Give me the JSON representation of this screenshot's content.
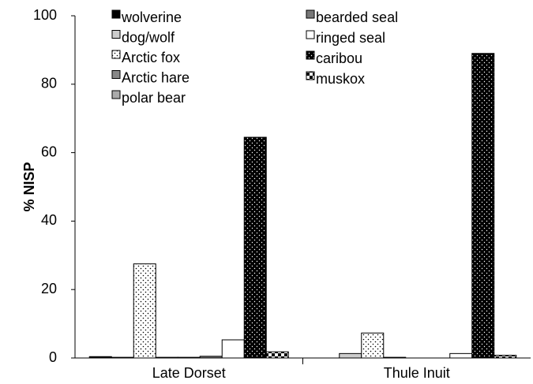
{
  "chart_data": {
    "type": "bar",
    "y_label": "% NISP",
    "categories": [
      "Late Dorset",
      "Thule Inuit"
    ],
    "series": [
      {
        "name": "wolverine",
        "color": "#000000",
        "values": [
          0.4,
          0
        ]
      },
      {
        "name": "dog/wolf",
        "color": "#cccccc",
        "values": [
          0.2,
          1.3
        ]
      },
      {
        "name": "Arctic fox",
        "color": "#ffffff",
        "pattern": "dots",
        "values": [
          27.5,
          7.3
        ]
      },
      {
        "name": "Arctic hare",
        "color": "#888888",
        "values": [
          0.2,
          0.2
        ]
      },
      {
        "name": "polar bear",
        "color": "#aaaaaa",
        "values": [
          0.2,
          0
        ]
      },
      {
        "name": "bearded seal",
        "color": "#777777",
        "values": [
          0.5,
          0
        ]
      },
      {
        "name": "ringed seal",
        "color": "#ffffff",
        "values": [
          5.3,
          1.3
        ]
      },
      {
        "name": "caribou",
        "color": "#000000",
        "pattern": "dots-inverse",
        "values": [
          64.5,
          89
        ]
      },
      {
        "name": "muskox",
        "color": "#ffffff",
        "pattern": "checker",
        "values": [
          1.8,
          0.8
        ]
      }
    ],
    "ylim": [
      0,
      100
    ],
    "yticks": [
      0,
      20,
      40,
      60,
      80,
      100
    ],
    "grid": false
  }
}
